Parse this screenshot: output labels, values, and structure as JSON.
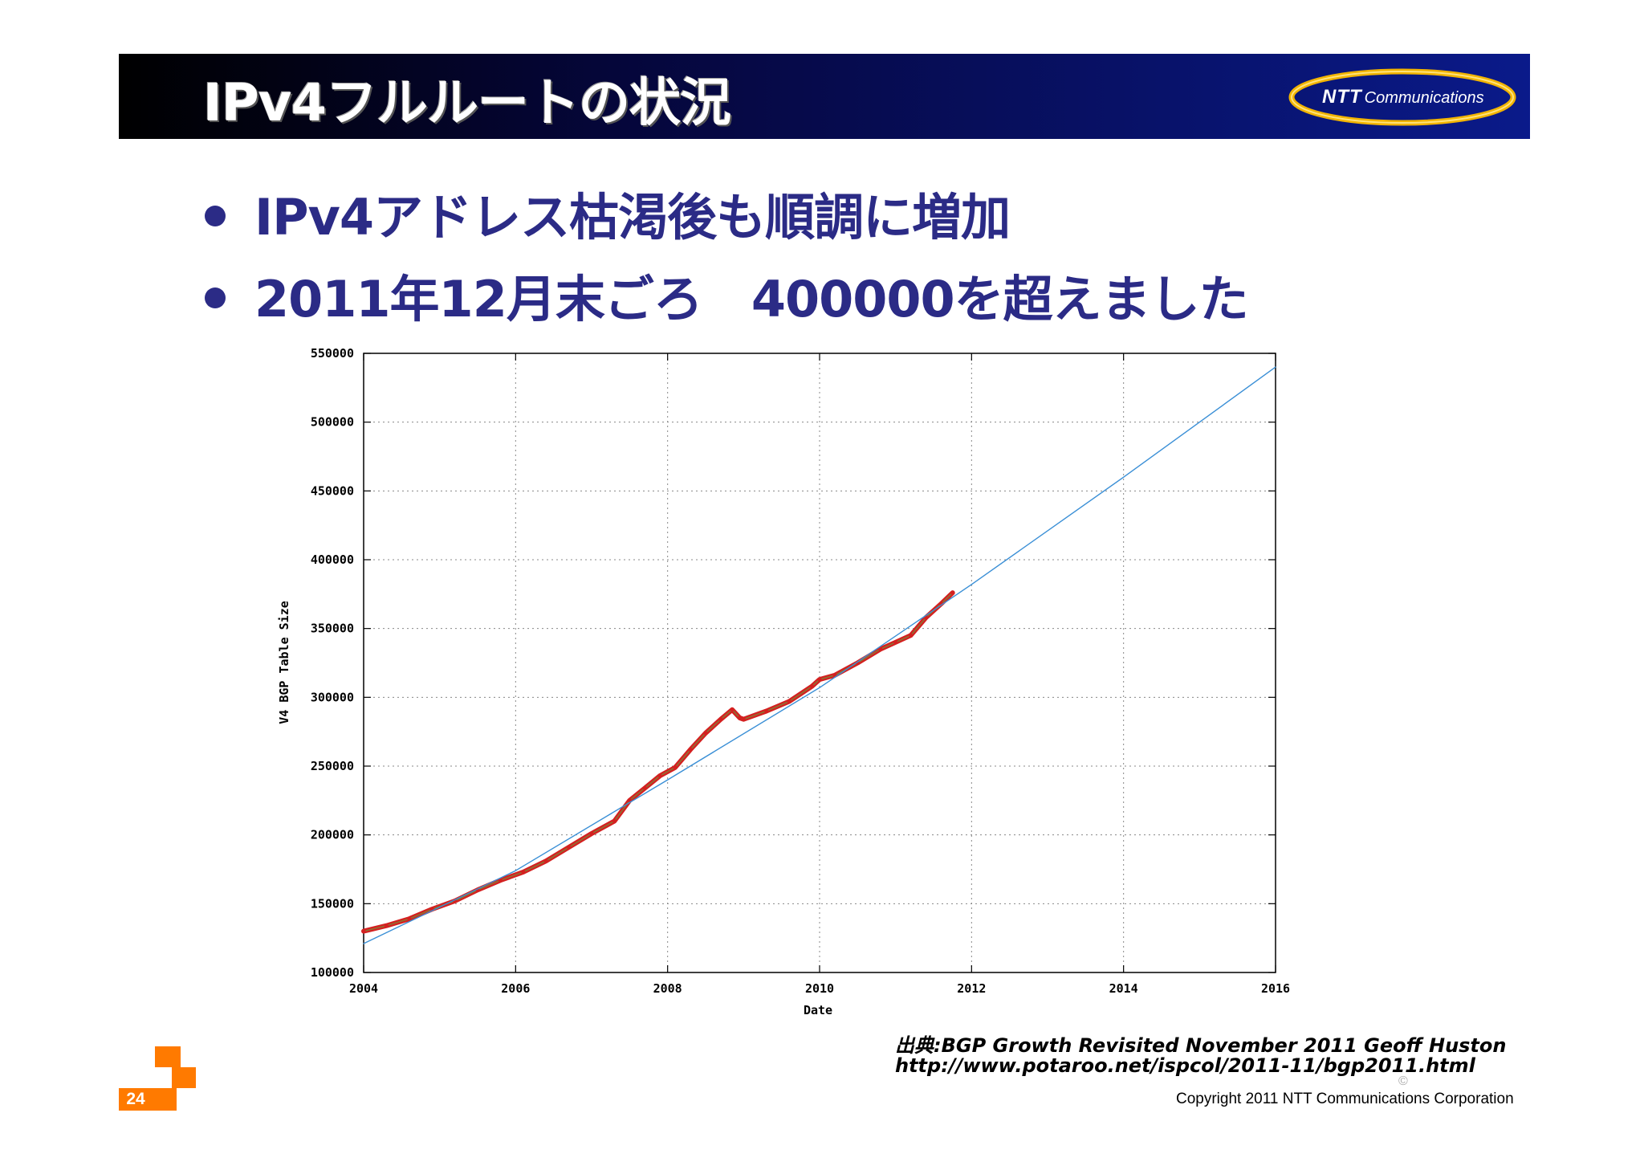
{
  "header": {
    "title": "IPv4フルルートの状況",
    "logo_brand": "NTT",
    "logo_text": "Communications"
  },
  "bullets": [
    "IPv4アドレス枯渇後も順調に増加",
    "2011年12月末ごろ　400000を超えました"
  ],
  "chart_data": {
    "type": "line",
    "xlabel": "Date",
    "ylabel": "V4 BGP Table Size",
    "xlim": [
      2004,
      2016
    ],
    "ylim": [
      100000,
      550000
    ],
    "x_ticks": [
      "2004",
      "2006",
      "2008",
      "2010",
      "2012",
      "2014",
      "2016"
    ],
    "y_ticks": [
      "100000",
      "150000",
      "200000",
      "250000",
      "300000",
      "350000",
      "400000",
      "450000",
      "500000",
      "550000"
    ],
    "grid": true,
    "series": [
      {
        "color": "#d42020",
        "x": [
          2004.0,
          2004.3,
          2004.6,
          2004.9,
          2005.2,
          2005.5,
          2005.8,
          2006.1,
          2006.4,
          2006.7,
          2007.0,
          2007.3,
          2007.5,
          2007.7,
          2007.9,
          2008.1,
          2008.3,
          2008.5,
          2008.7,
          2008.85,
          2008.95,
          2009.0,
          2009.3,
          2009.6,
          2009.9,
          2010.0,
          2010.2,
          2010.5,
          2010.8,
          2011.0,
          2011.2,
          2011.4,
          2011.6,
          2011.75
        ],
        "y": [
          130000,
          134000,
          139000,
          146000,
          152000,
          160000,
          167000,
          173000,
          181000,
          191000,
          201000,
          210000,
          225000,
          234000,
          243000,
          249000,
          262000,
          274000,
          284000,
          291000,
          285000,
          284000,
          290000,
          297000,
          308000,
          313000,
          316000,
          325000,
          335000,
          340000,
          345000,
          358000,
          368000,
          376000
        ]
      },
      {
        "color": "#3a8fd6",
        "x": [
          2004.0,
          2006.0,
          2008.0,
          2010.0,
          2012.0,
          2014.0,
          2016.0
        ],
        "y": [
          121000,
          174000,
          240000,
          307000,
          382000,
          460000,
          540000
        ]
      }
    ]
  },
  "source": {
    "line1": "出典:BGP Growth Revisited November 2011 Geoff Huston",
    "line2": "http://www.potaroo.net/ispcol/2011-11/bgp2011.html"
  },
  "footer": {
    "copyright": "Copyright 2011 NTT Communications Corporation",
    "copysign": "©",
    "page_number": "24",
    "accent": "#ff7a00"
  }
}
